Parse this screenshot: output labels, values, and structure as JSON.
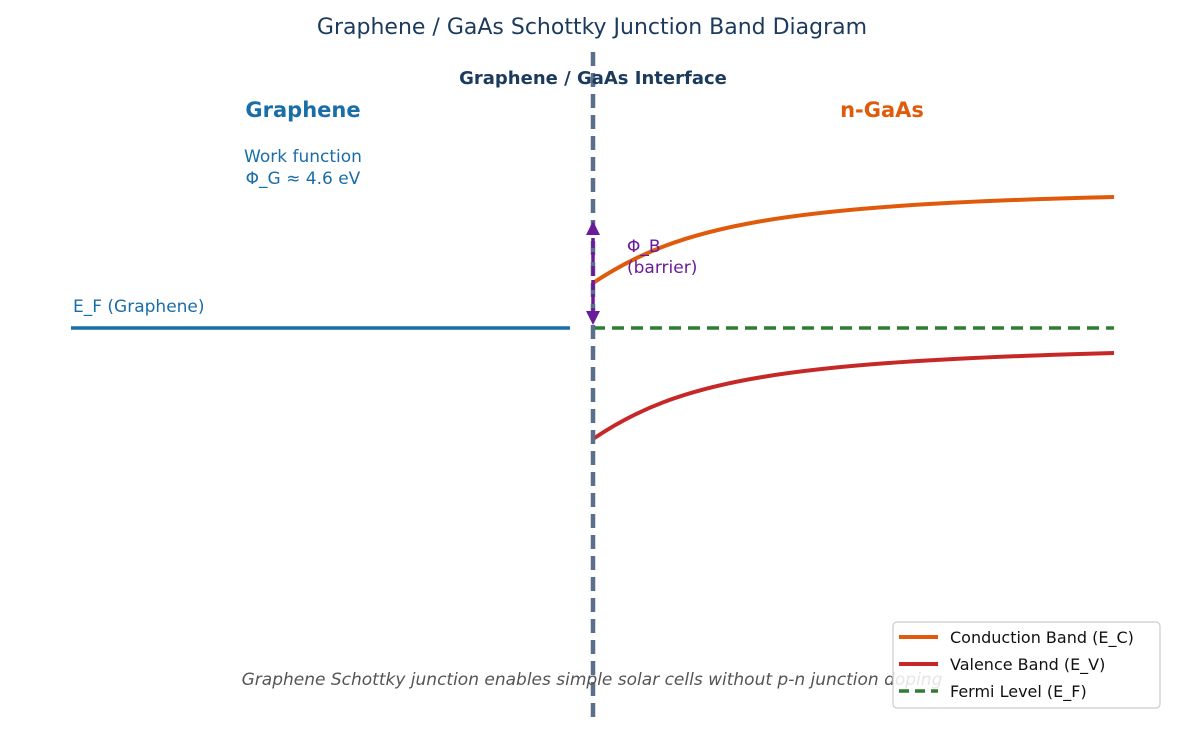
{
  "title": "Graphene / GaAs Schottky Junction Band Diagram",
  "interface_label": "Graphene / GaAs Interface",
  "left_region": {
    "label": "Graphene",
    "work_function_line1": "Work function",
    "work_function_line2": "Φ_G ≈ 4.6 eV",
    "fermi_label": "E_F (Graphene)"
  },
  "right_region": {
    "label": "n-GaAs"
  },
  "barrier": {
    "line1": "Φ_B",
    "line2": "(barrier)"
  },
  "caption": "Graphene Schottky junction enables simple solar cells without p-n junction doping",
  "legend": {
    "conduction": "Conduction Band (E_C)",
    "valence": "Valence Band (E_V)",
    "fermi": "Fermi Level (E_F)"
  },
  "colors": {
    "title": "#1b3a5c",
    "graphene": "#1a6ea8",
    "gaas": "#e05a0c",
    "conduction": "#e05a0c",
    "valence": "#c62828",
    "fermi": "#2e7d32",
    "barrier": "#6a1b9a",
    "interface": "#5a6f8a"
  }
}
